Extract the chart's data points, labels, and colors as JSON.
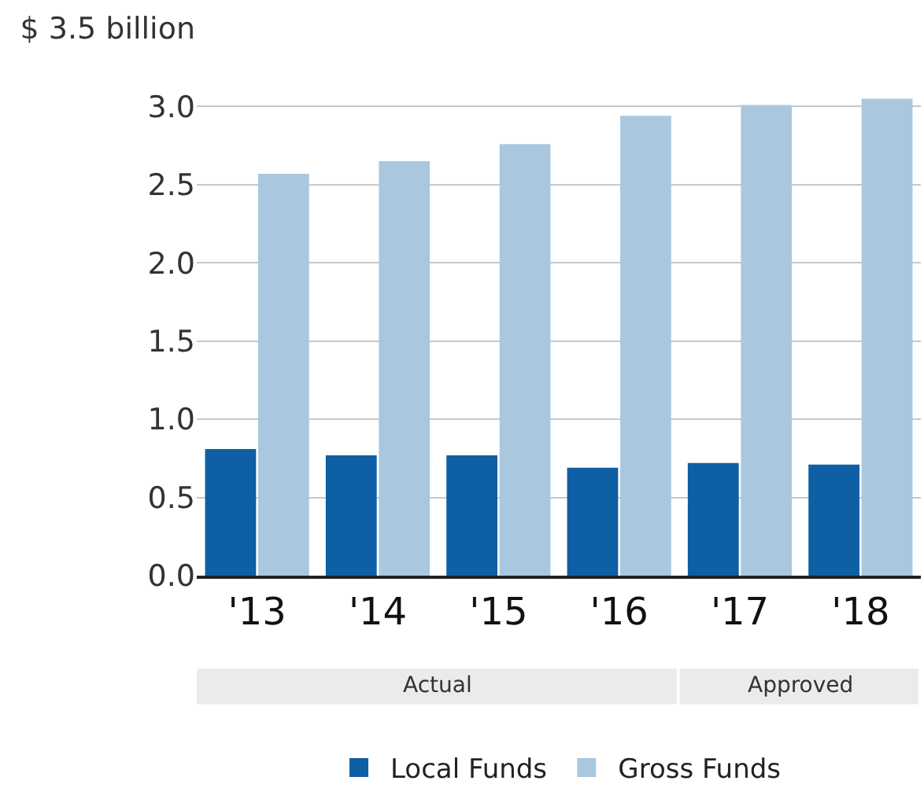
{
  "chart_data": {
    "type": "bar",
    "categories": [
      "'13",
      "'14",
      "'15",
      "'16",
      "'17",
      "'18"
    ],
    "series": [
      {
        "name": "Local Funds",
        "color": "#0e5fa3",
        "values": [
          0.81,
          0.77,
          0.77,
          0.69,
          0.72,
          0.71
        ]
      },
      {
        "name": "Gross Funds",
        "color": "#a9c8e0",
        "values": [
          2.57,
          2.65,
          2.76,
          2.94,
          3.01,
          3.05
        ]
      }
    ],
    "ylim": [
      0,
      3.5
    ],
    "yticks": [
      {
        "value": 0,
        "label": "0.0"
      },
      0.5,
      {
        "value": 1,
        "label": "1.0"
      },
      1.5,
      {
        "value": 2,
        "label": "2.0"
      },
      2.5,
      {
        "value": 3,
        "label": "3.0"
      },
      {
        "value": 3.5,
        "label": "$ 3.5 billion"
      }
    ],
    "grid": "y",
    "legend": "bottom",
    "annotations": [
      "Actual",
      "Approved"
    ]
  }
}
